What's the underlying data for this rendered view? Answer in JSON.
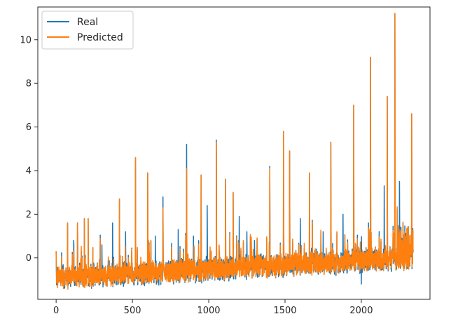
{
  "chart_data": {
    "type": "line",
    "title": "",
    "xlabel": "",
    "ylabel": "",
    "xlim": [
      -120,
      2450
    ],
    "ylim": [
      -1.9,
      11.5
    ],
    "x_ticks": [
      0,
      500,
      1000,
      1500,
      2000
    ],
    "y_ticks": [
      0,
      2,
      4,
      6,
      8,
      10
    ],
    "grid": false,
    "legend_position": "top-left",
    "n_points": 2340,
    "series": [
      {
        "name": "Real",
        "color": "#1f77b4",
        "peaks": [
          {
            "x": 0,
            "y": 0.3
          },
          {
            "x": 75,
            "y": 1.6
          },
          {
            "x": 115,
            "y": 0.8
          },
          {
            "x": 140,
            "y": 1.6
          },
          {
            "x": 185,
            "y": 1.8
          },
          {
            "x": 210,
            "y": 1.8
          },
          {
            "x": 300,
            "y": 0.6
          },
          {
            "x": 370,
            "y": 1.6
          },
          {
            "x": 415,
            "y": 2.7
          },
          {
            "x": 455,
            "y": 1.2
          },
          {
            "x": 520,
            "y": 4.6
          },
          {
            "x": 600,
            "y": 3.9
          },
          {
            "x": 650,
            "y": 1.0
          },
          {
            "x": 700,
            "y": 2.8
          },
          {
            "x": 800,
            "y": 1.3
          },
          {
            "x": 855,
            "y": 5.2
          },
          {
            "x": 900,
            "y": 1.0
          },
          {
            "x": 950,
            "y": 3.8
          },
          {
            "x": 990,
            "y": 2.4
          },
          {
            "x": 1050,
            "y": 5.4
          },
          {
            "x": 1110,
            "y": 3.6
          },
          {
            "x": 1160,
            "y": 3.0
          },
          {
            "x": 1200,
            "y": 1.9
          },
          {
            "x": 1250,
            "y": 1.2
          },
          {
            "x": 1300,
            "y": 0.8
          },
          {
            "x": 1400,
            "y": 4.2
          },
          {
            "x": 1490,
            "y": 5.8
          },
          {
            "x": 1530,
            "y": 4.9
          },
          {
            "x": 1600,
            "y": 1.8
          },
          {
            "x": 1660,
            "y": 3.9
          },
          {
            "x": 1750,
            "y": 1.2
          },
          {
            "x": 1800,
            "y": 5.3
          },
          {
            "x": 1880,
            "y": 2.0
          },
          {
            "x": 1950,
            "y": 7.0
          },
          {
            "x": 2000,
            "y": 2.3
          },
          {
            "x": 2060,
            "y": 9.2
          },
          {
            "x": 2150,
            "y": 3.3
          },
          {
            "x": 2170,
            "y": 7.4
          },
          {
            "x": 2220,
            "y": 11.2
          },
          {
            "x": 2250,
            "y": 3.5
          },
          {
            "x": 2330,
            "y": 6.6
          }
        ]
      },
      {
        "name": "Predicted",
        "color": "#ff7f0e",
        "peaks": [
          {
            "x": 0,
            "y": 0.3
          },
          {
            "x": 75,
            "y": 1.6
          },
          {
            "x": 140,
            "y": 1.6
          },
          {
            "x": 185,
            "y": 1.8
          },
          {
            "x": 210,
            "y": 1.8
          },
          {
            "x": 415,
            "y": 2.7
          },
          {
            "x": 520,
            "y": 4.6
          },
          {
            "x": 600,
            "y": 3.9
          },
          {
            "x": 700,
            "y": 2.3
          },
          {
            "x": 855,
            "y": 4.1
          },
          {
            "x": 950,
            "y": 3.8
          },
          {
            "x": 1050,
            "y": 5.3
          },
          {
            "x": 1110,
            "y": 3.6
          },
          {
            "x": 1160,
            "y": 3.0
          },
          {
            "x": 1400,
            "y": 4.1
          },
          {
            "x": 1490,
            "y": 5.8
          },
          {
            "x": 1530,
            "y": 4.9
          },
          {
            "x": 1660,
            "y": 3.9
          },
          {
            "x": 1800,
            "y": 5.3
          },
          {
            "x": 1950,
            "y": 7.0
          },
          {
            "x": 2060,
            "y": 9.2
          },
          {
            "x": 2170,
            "y": 7.4
          },
          {
            "x": 2220,
            "y": 11.2
          },
          {
            "x": 2330,
            "y": 6.6
          }
        ]
      }
    ]
  }
}
